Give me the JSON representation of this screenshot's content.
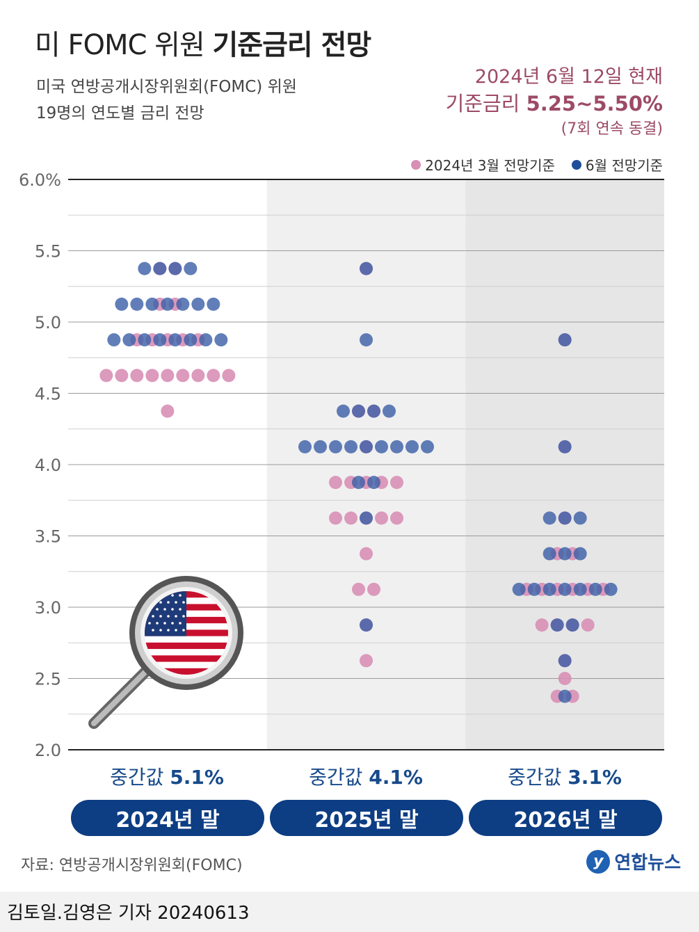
{
  "header": {
    "title_light": "미 FOMC 위원 ",
    "title_bold": "기준금리 전망",
    "subtitle_line1": "미국 연방공개시장위원회(FOMC) 위원",
    "subtitle_line2": "19명의 연도별 금리 전망",
    "asof": "2024년 6월 12일 현재",
    "rate_prefix": "기준금리 ",
    "rate_value": "5.25~5.50%",
    "freeze_note": "(7회 연속 동결)"
  },
  "legend": [
    {
      "label": "2024년 3월 전망기준",
      "color": "#d88fb5"
    },
    {
      "label": "6월 전망기준",
      "color": "#1f4f9a"
    }
  ],
  "colors": {
    "march": "#d88fb5",
    "june": "#3a5ea6",
    "overlap": "#56448a",
    "button": "#0d3d83",
    "accent": "#9c4a66"
  },
  "chart_data": {
    "type": "scatter",
    "title": "미 FOMC 위원 기준금리 전망",
    "ylim": [
      2.0,
      6.0
    ],
    "y_ticks": [
      "6.0%",
      "5.5",
      "5.0",
      "4.5",
      "4.0",
      "3.5",
      "3.0",
      "2.5",
      "2.0"
    ],
    "tick_values": [
      6.0,
      5.5,
      5.0,
      4.5,
      4.0,
      3.5,
      3.0,
      2.5,
      2.0
    ],
    "grid": true,
    "legend_position": "top-right",
    "categories": [
      "2024년 말",
      "2025년 말",
      "2026년 말"
    ],
    "series": [
      {
        "name": "2024년 3월 전망기준",
        "points": [
          {
            "x": "2024년 말",
            "rates": [
              5.375,
              5.375,
              5.125,
              5.125,
              4.875,
              4.875,
              4.875,
              4.875,
              4.875,
              4.625,
              4.625,
              4.625,
              4.625,
              4.625,
              4.625,
              4.625,
              4.625,
              4.625,
              4.375
            ]
          },
          {
            "x": "2025년 말",
            "rates": [
              5.375,
              4.375,
              4.375,
              4.125,
              3.875,
              3.875,
              3.875,
              3.875,
              3.875,
              3.625,
              3.625,
              3.625,
              3.625,
              3.625,
              3.375,
              3.125,
              3.125,
              2.875,
              2.625
            ]
          },
          {
            "x": "2026년 말",
            "rates": [
              4.875,
              4.125,
              3.625,
              3.375,
              3.375,
              3.125,
              3.125,
              3.125,
              3.125,
              3.125,
              3.125,
              2.875,
              2.875,
              2.875,
              2.875,
              2.625,
              2.5,
              2.375,
              2.375
            ]
          }
        ]
      },
      {
        "name": "6월 전망기준",
        "points": [
          {
            "x": "2024년 말",
            "rates": [
              5.375,
              5.375,
              5.375,
              5.375,
              5.125,
              5.125,
              5.125,
              5.125,
              5.125,
              5.125,
              5.125,
              4.875,
              4.875,
              4.875,
              4.875,
              4.875,
              4.875,
              4.875,
              4.875
            ]
          },
          {
            "x": "2025년 말",
            "rates": [
              5.375,
              4.875,
              4.375,
              4.375,
              4.375,
              4.375,
              4.125,
              4.125,
              4.125,
              4.125,
              4.125,
              4.125,
              4.125,
              4.125,
              4.125,
              3.875,
              3.875,
              3.625,
              2.875
            ]
          },
          {
            "x": "2026년 말",
            "rates": [
              4.875,
              4.125,
              3.625,
              3.625,
              3.625,
              3.375,
              3.375,
              3.375,
              3.125,
              3.125,
              3.125,
              3.125,
              3.125,
              3.125,
              3.125,
              2.875,
              2.875,
              2.625,
              2.375
            ]
          }
        ]
      }
    ],
    "medians": [
      {
        "label": "중간값 ",
        "value": "5.1%"
      },
      {
        "label": "중간값 ",
        "value": "4.1%"
      },
      {
        "label": "중간값 ",
        "value": "3.1%"
      }
    ]
  },
  "footer": {
    "source": "자료: 연방공개시장위원회(FOMC)",
    "logo_text": "연합뉴스",
    "byline": "김토일.김영은 기자  20240613"
  }
}
